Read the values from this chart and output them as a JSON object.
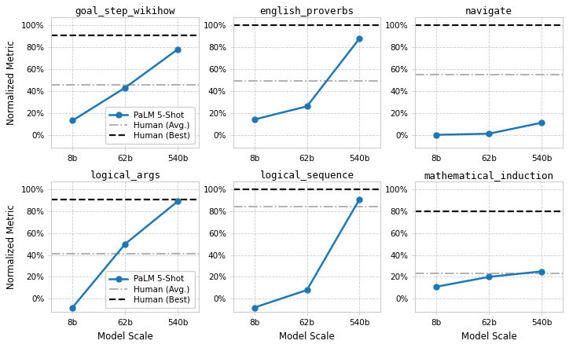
{
  "subplots": [
    {
      "title": "goal_step_wikihow",
      "palm_values": [
        13,
        43,
        78
      ],
      "human_avg": 46,
      "human_best": 91,
      "show_legend": true
    },
    {
      "title": "english_proverbs",
      "palm_values": [
        14,
        26,
        88
      ],
      "human_avg": 49,
      "human_best": 100,
      "show_legend": false
    },
    {
      "title": "navigate",
      "palm_values": [
        0,
        1,
        11
      ],
      "human_avg": 55,
      "human_best": 100,
      "show_legend": false
    },
    {
      "title": "logical_args",
      "palm_values": [
        -8,
        50,
        89
      ],
      "human_avg": 41,
      "human_best": 91,
      "show_legend": true
    },
    {
      "title": "logical_sequence",
      "palm_values": [
        -8,
        8,
        91
      ],
      "human_avg": 84,
      "human_best": 100,
      "show_legend": false
    },
    {
      "title": "mathematical_induction",
      "palm_values": [
        11,
        20,
        25
      ],
      "human_avg": 23,
      "human_best": 80,
      "show_legend": false
    }
  ],
  "x_labels": [
    "8b",
    "62b",
    "540b"
  ],
  "x_positions": [
    0,
    1,
    2
  ],
  "line_color": "#1f77b4",
  "human_avg_color": "#aaaaaa",
  "human_best_color": "#111111",
  "marker": "o",
  "markersize": 5,
  "linewidth": 1.8,
  "ylabel": "Normalized Metric",
  "xlabel": "Model Scale",
  "legend_labels": [
    "PaLM 5-Shot",
    "Human (Avg.)",
    "Human (Best)"
  ],
  "ylim": [
    -12,
    107
  ],
  "yticks": [
    0,
    20,
    40,
    60,
    80,
    100
  ],
  "ytick_labels": [
    "0%",
    "20%",
    "40%",
    "60%",
    "80%",
    "100%"
  ],
  "title_fontsize": 9,
  "tick_fontsize": 7.5,
  "label_fontsize": 8.5,
  "legend_fontsize": 7.5,
  "fig_width": 7.24,
  "fig_height": 4.43,
  "dpi": 100
}
